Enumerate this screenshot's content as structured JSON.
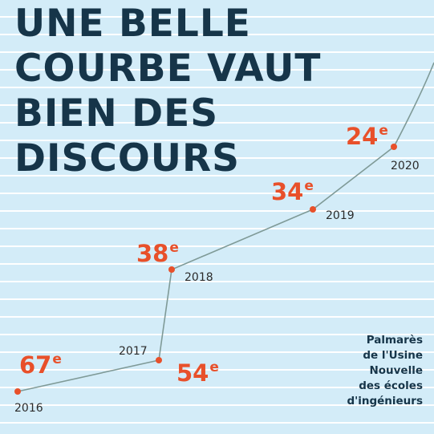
{
  "title_lines": [
    "UNE BELLE",
    "COURBE VAUT",
    "BIEN DES",
    "DISCOURS"
  ],
  "source_lines": [
    "Palmarès",
    "de l'Usine",
    "Nouvelle",
    "des écoles",
    "d'ingénieurs"
  ],
  "colors": {
    "background": "#d3ecf8",
    "line": "#7f9a97",
    "point": "#e8502a",
    "rank_text": "#e8502a",
    "year_text": "#2b2b2b",
    "title_text": "#163549"
  },
  "chart_data": {
    "type": "line",
    "title": "UNE BELLE COURBE VAUT BIEN DES DISCOURS",
    "x": [
      2016,
      2017,
      2018,
      2019,
      2020
    ],
    "series": [
      {
        "values": [
          67,
          54,
          38,
          34,
          24
        ],
        "labels": [
          "67",
          "54",
          "38",
          "34",
          "24"
        ]
      }
    ],
    "rank_suffix": "e",
    "y_inverted": true,
    "trend_continues_after_last_point": true,
    "grid": false,
    "legend": "none"
  }
}
